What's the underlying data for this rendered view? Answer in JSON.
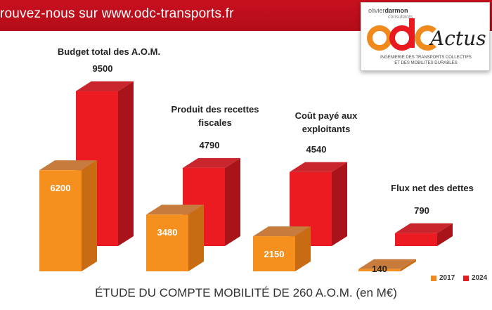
{
  "banner": {
    "text": "rouvez-nous sur www.odc-transports.fr"
  },
  "logo": {
    "name_first": "olivier",
    "name_last": "darmon",
    "subtitle": "consultants",
    "mark": "odc",
    "actus": "Actus",
    "tagline_1": "INGENIERIE DES TRANSPORTS COLLECTIFS",
    "tagline_2": "ET DES MOBILITES DURABLES"
  },
  "colors": {
    "series_2017": "#f08a1c",
    "series_2024": "#e8191f",
    "banner": "#c8101f"
  },
  "chart_data": {
    "type": "bar",
    "title": "ÉTUDE DU COMPTE MOBILITÉ DE 260 A.O.M. (en M€)",
    "categories": [
      "Budget total des A.O.M.",
      "Produit des recettes fiscales",
      "Coût payé aux exploitants",
      "Flux net des dettes"
    ],
    "series": [
      {
        "name": "2017",
        "values": [
          6200,
          3480,
          2150,
          140
        ]
      },
      {
        "name": "2024",
        "values": [
          9500,
          4790,
          4540,
          790
        ]
      }
    ],
    "value_labels": {
      "s2017": [
        "6200",
        "3480",
        "2150",
        "140"
      ],
      "s2024": [
        "9500",
        "4790",
        "4540",
        "790"
      ]
    },
    "ylim": [
      0,
      10000
    ],
    "grid": false,
    "legend": "bottom-right",
    "style": "3d"
  }
}
